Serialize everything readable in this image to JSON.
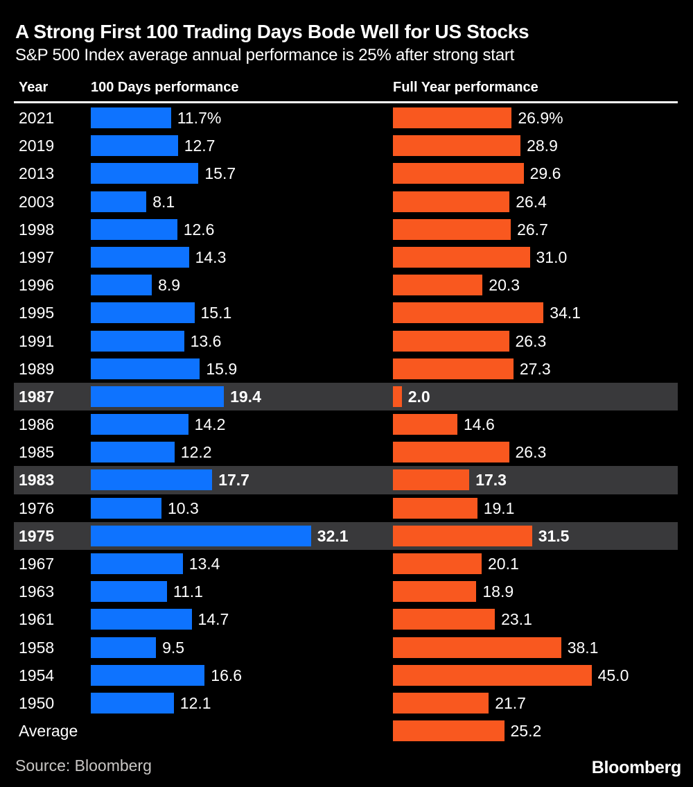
{
  "header": {
    "title": "A Strong First 100 Trading Days Bode Well for US Stocks",
    "subtitle": "S&P 500 Index average annual performance is 25% after strong start"
  },
  "columns": {
    "year": "Year",
    "days100": "100 Days performance",
    "full_year": "Full Year performance"
  },
  "footer": {
    "source": "Source: Bloomberg",
    "logo": "Bloomberg"
  },
  "colors": {
    "background": "#000000",
    "bar_blue": "#0e73ff",
    "bar_orange": "#f9581f",
    "highlight_row": "#39393b",
    "divider": "#ffffff",
    "text": "#ffffff",
    "muted_text": "#c9c7c5"
  },
  "chart_data": {
    "type": "bar",
    "orientation": "horizontal",
    "title": "A Strong First 100 Trading Days Bode Well for US Stocks",
    "subtitle": "S&P 500 Index average annual performance is 25% after strong start",
    "value_unit": "%",
    "series_names": [
      "100 Days performance",
      "Full Year performance"
    ],
    "highlighted_years": [
      "1987",
      "1983",
      "1975"
    ],
    "categories": [
      "2021",
      "2019",
      "2013",
      "2003",
      "1998",
      "1997",
      "1996",
      "1995",
      "1991",
      "1989",
      "1987",
      "1986",
      "1985",
      "1983",
      "1976",
      "1975",
      "1967",
      "1963",
      "1961",
      "1958",
      "1954",
      "1950",
      "Average"
    ],
    "rows": [
      {
        "year": "2021",
        "d100": 11.7,
        "d100_label": "11.7%",
        "full": 26.9,
        "full_label": "26.9%",
        "highlight": false
      },
      {
        "year": "2019",
        "d100": 12.7,
        "d100_label": "12.7",
        "full": 28.9,
        "full_label": "28.9",
        "highlight": false
      },
      {
        "year": "2013",
        "d100": 15.7,
        "d100_label": "15.7",
        "full": 29.6,
        "full_label": "29.6",
        "highlight": false
      },
      {
        "year": "2003",
        "d100": 8.1,
        "d100_label": "8.1",
        "full": 26.4,
        "full_label": "26.4",
        "highlight": false
      },
      {
        "year": "1998",
        "d100": 12.6,
        "d100_label": "12.6",
        "full": 26.7,
        "full_label": "26.7",
        "highlight": false
      },
      {
        "year": "1997",
        "d100": 14.3,
        "d100_label": "14.3",
        "full": 31.0,
        "full_label": "31.0",
        "highlight": false
      },
      {
        "year": "1996",
        "d100": 8.9,
        "d100_label": "8.9",
        "full": 20.3,
        "full_label": "20.3",
        "highlight": false
      },
      {
        "year": "1995",
        "d100": 15.1,
        "d100_label": "15.1",
        "full": 34.1,
        "full_label": "34.1",
        "highlight": false
      },
      {
        "year": "1991",
        "d100": 13.6,
        "d100_label": "13.6",
        "full": 26.3,
        "full_label": "26.3",
        "highlight": false
      },
      {
        "year": "1989",
        "d100": 15.9,
        "d100_label": "15.9",
        "full": 27.3,
        "full_label": "27.3",
        "highlight": false
      },
      {
        "year": "1987",
        "d100": 19.4,
        "d100_label": "19.4",
        "full": 2.0,
        "full_label": "2.0",
        "highlight": true
      },
      {
        "year": "1986",
        "d100": 14.2,
        "d100_label": "14.2",
        "full": 14.6,
        "full_label": "14.6",
        "highlight": false
      },
      {
        "year": "1985",
        "d100": 12.2,
        "d100_label": "12.2",
        "full": 26.3,
        "full_label": "26.3",
        "highlight": false
      },
      {
        "year": "1983",
        "d100": 17.7,
        "d100_label": "17.7",
        "full": 17.3,
        "full_label": "17.3",
        "highlight": true
      },
      {
        "year": "1976",
        "d100": 10.3,
        "d100_label": "10.3",
        "full": 19.1,
        "full_label": "19.1",
        "highlight": false
      },
      {
        "year": "1975",
        "d100": 32.1,
        "d100_label": "32.1",
        "full": 31.5,
        "full_label": "31.5",
        "highlight": true
      },
      {
        "year": "1967",
        "d100": 13.4,
        "d100_label": "13.4",
        "full": 20.1,
        "full_label": "20.1",
        "highlight": false
      },
      {
        "year": "1963",
        "d100": 11.1,
        "d100_label": "11.1",
        "full": 18.9,
        "full_label": "18.9",
        "highlight": false
      },
      {
        "year": "1961",
        "d100": 14.7,
        "d100_label": "14.7",
        "full": 23.1,
        "full_label": "23.1",
        "highlight": false
      },
      {
        "year": "1958",
        "d100": 9.5,
        "d100_label": "9.5",
        "full": 38.1,
        "full_label": "38.1",
        "highlight": false
      },
      {
        "year": "1954",
        "d100": 16.6,
        "d100_label": "16.6",
        "full": 45.0,
        "full_label": "45.0",
        "highlight": false
      },
      {
        "year": "1950",
        "d100": 12.1,
        "d100_label": "12.1",
        "full": 21.7,
        "full_label": "21.7",
        "highlight": false
      },
      {
        "year": "Average",
        "d100": null,
        "d100_label": "",
        "full": 25.2,
        "full_label": "25.2",
        "highlight": false
      }
    ]
  }
}
